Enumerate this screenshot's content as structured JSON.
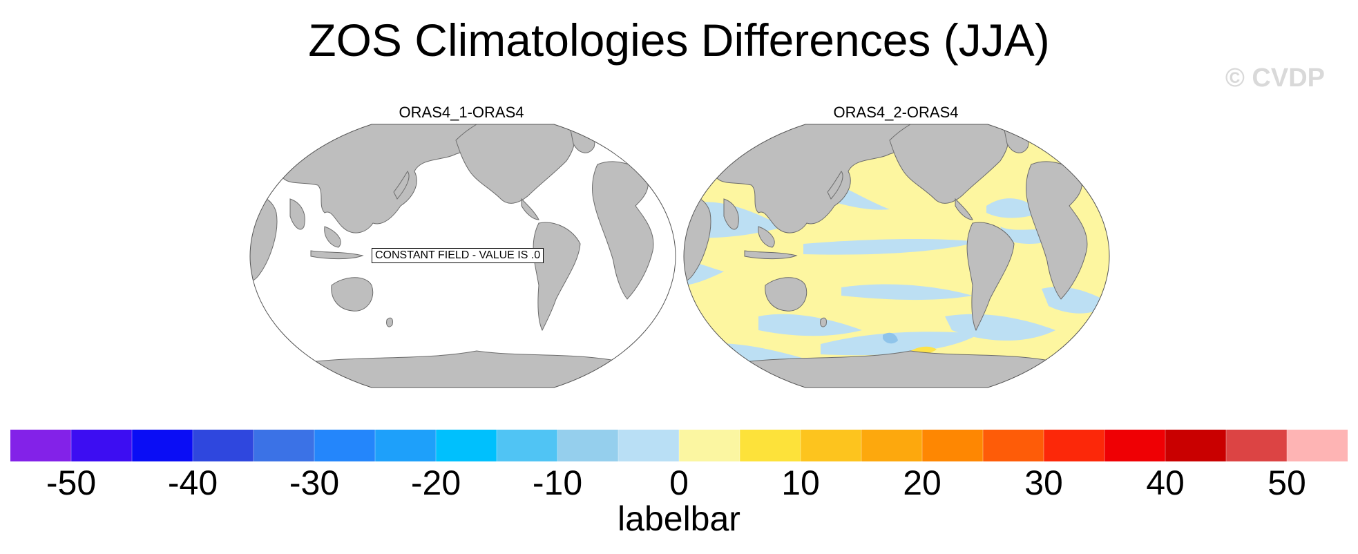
{
  "title": "ZOS Climatologies Differences (JJA)",
  "watermark": "© CVDP",
  "panels": [
    {
      "title": "ORAS4_1-ORAS4",
      "note": "CONSTANT FIELD - VALUE IS .0"
    },
    {
      "title": "ORAS4_2-ORAS4"
    }
  ],
  "colors": {
    "land": "#bebebe",
    "ocean_zero": "#ffffff",
    "ocean_pos": "#fdf6a0",
    "ocean_neg": "#bcdff3",
    "ocean_neg_strong": "#8fc4ea",
    "ocean_pos_strong": "#fde34a"
  },
  "colorbar": {
    "label": "labelbar",
    "ticks": [
      "-50",
      "-40",
      "-30",
      "-20",
      "-10",
      "0",
      "10",
      "20",
      "30",
      "40",
      "50"
    ],
    "colors": [
      "#8322e8",
      "#3d0df2",
      "#0a0df5",
      "#2f47de",
      "#3b72e6",
      "#2486fb",
      "#1ea0fa",
      "#00c0fd",
      "#50c4f4",
      "#95cfed",
      "#b9dff5",
      "#fbf6a1",
      "#fde23a",
      "#fdc41e",
      "#fda80d",
      "#fe8702",
      "#fe5c08",
      "#fc2809",
      "#ef0004",
      "#c90000",
      "#dc4444",
      "#feb4b4"
    ]
  }
}
